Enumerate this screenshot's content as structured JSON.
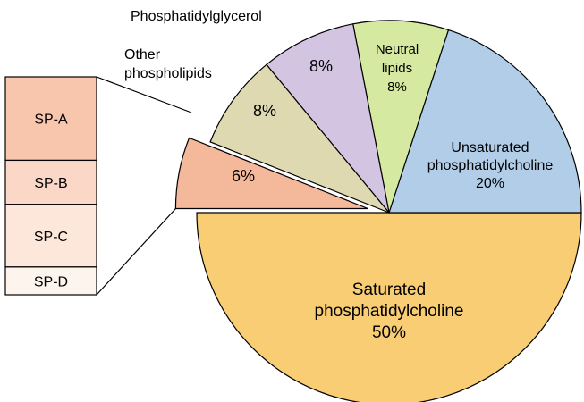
{
  "chart_data": {
    "type": "pie",
    "slices": [
      {
        "label": "Saturated phosphatidylcholine",
        "value": 50,
        "value_label": "50%",
        "color": "#f9cd74"
      },
      {
        "label": "Unsaturated phosphatidylcholine",
        "value": 20,
        "value_label": "20%",
        "color": "#b1cde8"
      },
      {
        "label": "Neutral lipids",
        "value": 8,
        "value_label": "8%",
        "color": "#d6e9a1"
      },
      {
        "label": "Phosphatidylglycerol",
        "value": 8,
        "value_label": "8%",
        "color": "#d3c4e2"
      },
      {
        "label": "Other phospholipids",
        "value": 8,
        "value_label": "8%",
        "color": "#ded9b1"
      },
      {
        "label": "",
        "value": 6,
        "value_label": "6%",
        "color": "#f4b89a"
      }
    ],
    "breakout": {
      "of_slice": "6%",
      "items": [
        {
          "label": "SP-A",
          "share": 0.36,
          "color": "#f8c6ad"
        },
        {
          "label": "SP-B",
          "share": 0.19,
          "color": "#fad7c6"
        },
        {
          "label": "SP-C",
          "share": 0.27,
          "color": "#fde6da"
        },
        {
          "label": "SP-D",
          "share": 0.12,
          "color": "#fef4ee"
        }
      ]
    }
  }
}
